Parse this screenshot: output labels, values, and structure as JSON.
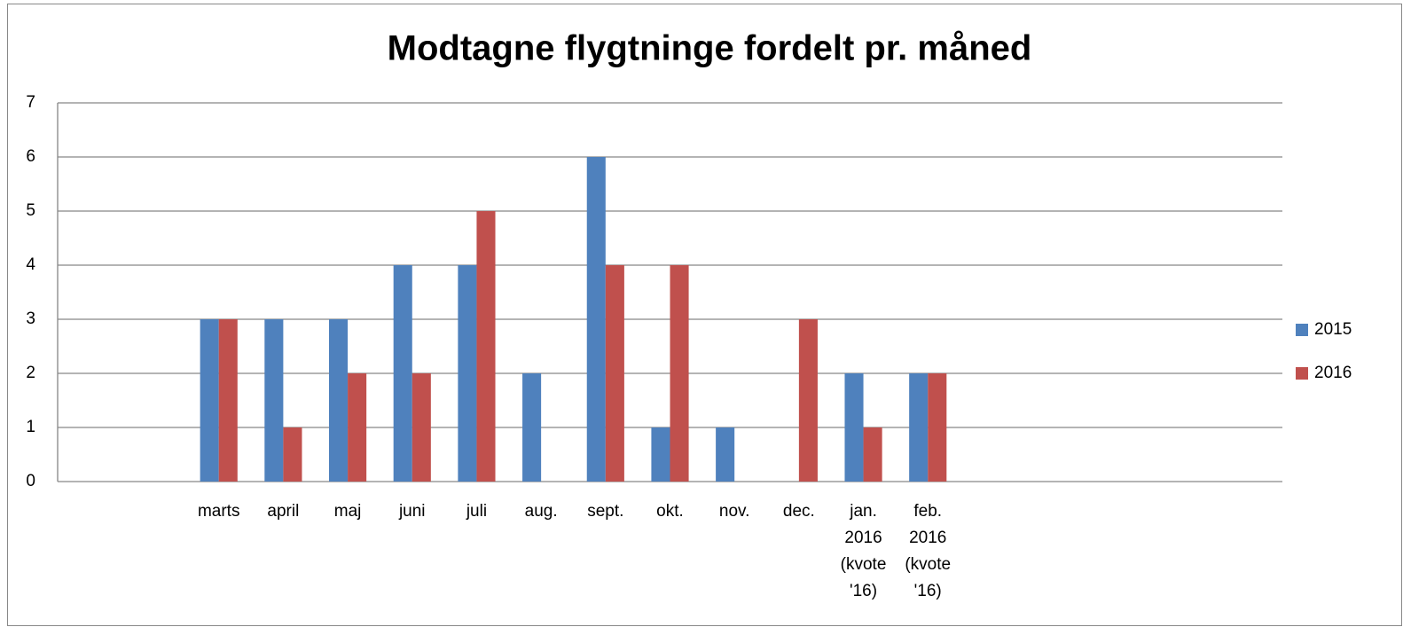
{
  "chart_data": {
    "type": "bar",
    "title": "Modtagne flygtninge fordelt pr. måned",
    "categories": [
      null,
      null,
      "marts",
      "april",
      "maj",
      "juni",
      "juli",
      "aug.",
      "sept.",
      "okt.",
      "nov.",
      "dec.",
      "jan. 2016 (kvote '16)",
      "feb. 2016 (kvote '16)",
      null,
      null,
      null,
      null,
      null
    ],
    "series": [
      {
        "name": "2015",
        "color": "#4f81bd",
        "values": [
          null,
          null,
          3,
          3,
          3,
          4,
          4,
          2,
          6,
          1,
          1,
          null,
          2,
          2,
          null,
          null,
          null,
          null,
          null
        ]
      },
      {
        "name": "2016",
        "color": "#c0504d",
        "values": [
          null,
          null,
          3,
          1,
          2,
          2,
          5,
          null,
          4,
          4,
          null,
          3,
          1,
          2,
          null,
          null,
          null,
          null,
          null
        ]
      }
    ],
    "ylim": [
      0,
      7
    ],
    "yticks": [
      0,
      1,
      2,
      3,
      4,
      5,
      6,
      7
    ],
    "grid": true,
    "legend": "right"
  }
}
